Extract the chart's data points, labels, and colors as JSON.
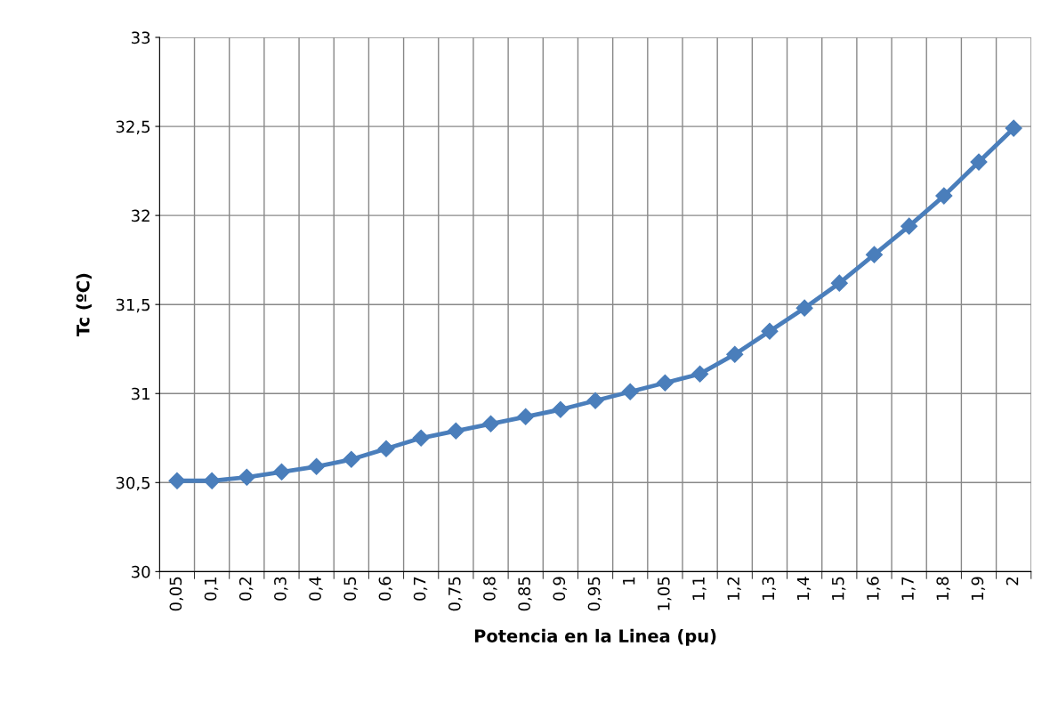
{
  "chart_data": {
    "type": "line",
    "xlabel": "Potencia en la Linea (pu)",
    "ylabel": "Tc (ºC)",
    "categories": [
      "0,05",
      "0,1",
      "0,2",
      "0,3",
      "0,4",
      "0,5",
      "0,6",
      "0,7",
      "0,75",
      "0,8",
      "0,85",
      "0,9",
      "0,95",
      "1",
      "1,05",
      "1,1",
      "1,2",
      "1,3",
      "1,4",
      "1,5",
      "1,6",
      "1,7",
      "1,8",
      "1,9",
      "2"
    ],
    "series": [
      {
        "color": "#4a7ebb",
        "values": [
          30.51,
          30.51,
          30.53,
          30.56,
          30.59,
          30.63,
          30.69,
          30.75,
          30.79,
          30.83,
          30.87,
          30.91,
          30.96,
          31.01,
          31.06,
          31.11,
          31.22,
          31.35,
          31.48,
          31.62,
          31.78,
          31.94,
          32.11,
          32.3,
          32.49
        ]
      }
    ],
    "ylim": [
      30,
      33
    ],
    "yticks": [
      30,
      {
        "value": 30.5,
        "label": "30,5"
      },
      31,
      {
        "value": 31.5,
        "label": "31,5"
      },
      32,
      {
        "value": 32.5,
        "label": "32,5"
      },
      33
    ],
    "grid": true,
    "marker": "diamond",
    "line_style": "solid",
    "legend": false
  }
}
